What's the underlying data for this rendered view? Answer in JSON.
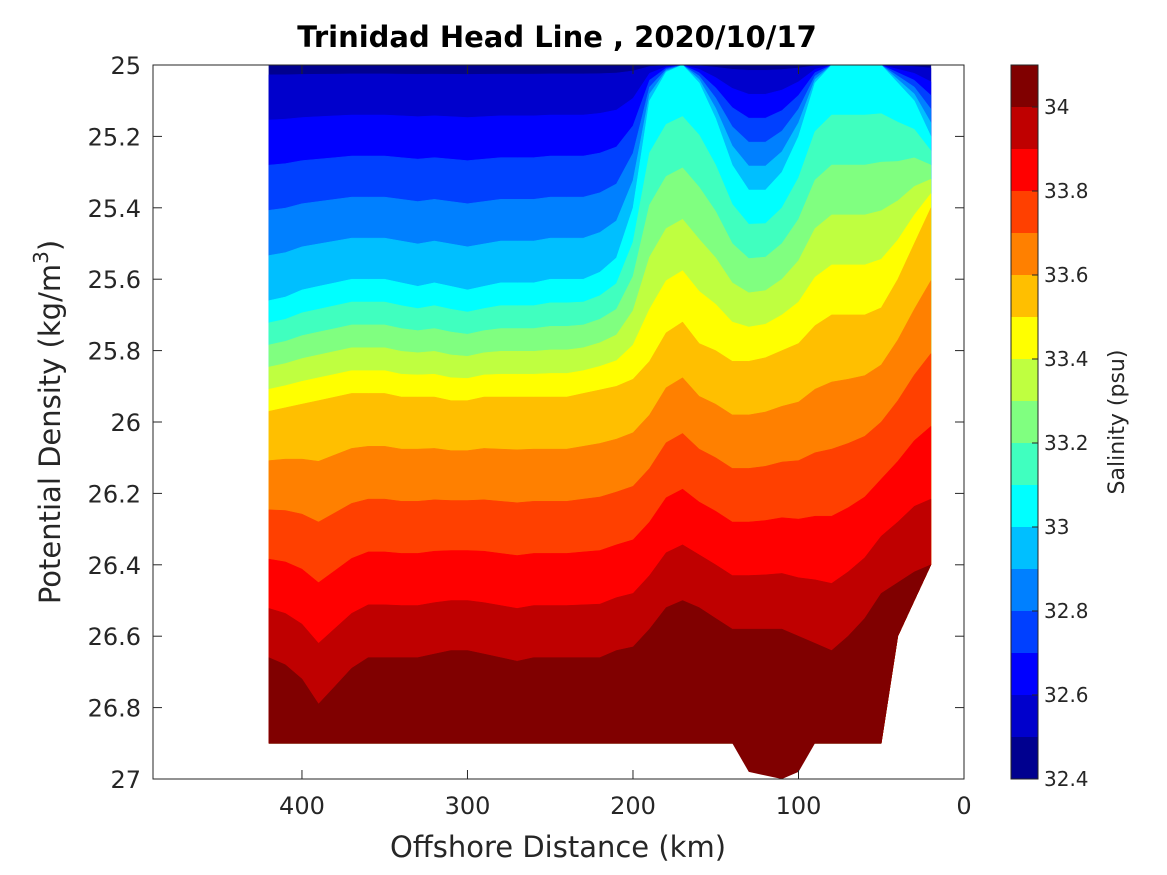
{
  "chart_data": {
    "type": "contour",
    "title": "Trinidad Head Line , 2020/10/17",
    "xlabel": "Offshore Distance (km)",
    "ylabel_main": "Potential Density (kg/m",
    "ylabel_sup": "3",
    "ylabel_close": ")",
    "colorbar_label": "Salinity (psu)",
    "x_reversed": true,
    "xlim": [
      490,
      0
    ],
    "ylim_reversed": true,
    "ylim": [
      25,
      27
    ],
    "x_ticks": [
      400,
      300,
      200,
      100,
      0
    ],
    "x_tick_labels": [
      "400",
      "300",
      "200",
      "100",
      "0"
    ],
    "y_ticks": [
      25,
      25.2,
      25.4,
      25.6,
      25.8,
      26,
      26.2,
      26.4,
      26.6,
      26.8,
      27
    ],
    "y_tick_labels": [
      "25",
      "25.2",
      "25.4",
      "25.6",
      "25.8",
      "26",
      "26.2",
      "26.4",
      "26.6",
      "26.8",
      "27"
    ],
    "colorbar_range": [
      32.4,
      34.1
    ],
    "colorbar_ticks": [
      32.4,
      32.6,
      32.8,
      33,
      33.2,
      33.4,
      33.6,
      33.8,
      34
    ],
    "colorbar_tick_labels": [
      "32.4",
      "32.6",
      "32.8",
      "33",
      "33.2",
      "33.4",
      "33.6",
      "33.8",
      "34"
    ],
    "levels": [
      32.4,
      32.5,
      32.6,
      32.7,
      32.8,
      32.9,
      33.0,
      33.1,
      33.2,
      33.3,
      33.4,
      33.5,
      33.6,
      33.7,
      33.8,
      33.9,
      34.0
    ],
    "level_colors": [
      "#00008f",
      "#0000cc",
      "#0000ff",
      "#0040ff",
      "#0080ff",
      "#00bfff",
      "#00ffff",
      "#40ffbf",
      "#80ff80",
      "#bfff40",
      "#ffff00",
      "#ffbf00",
      "#ff8000",
      "#ff4000",
      "#ff0000",
      "#bf0000",
      "#800000"
    ],
    "x": [
      420,
      410,
      400,
      390,
      380,
      370,
      360,
      350,
      340,
      330,
      320,
      310,
      300,
      290,
      280,
      270,
      260,
      250,
      240,
      230,
      220,
      210,
      200,
      190,
      180,
      170,
      160,
      150,
      140,
      130,
      120,
      110,
      100,
      90,
      80,
      70,
      60,
      50,
      40,
      30,
      20
    ],
    "isopycnal_depth_of_salinity_level": {
      "note": "sigma-theta at which salinity crosses each level, per station (x order as above)",
      "33.0": [
        25.66,
        25.65,
        25.63,
        25.62,
        25.61,
        25.6,
        25.6,
        25.6,
        25.61,
        25.62,
        25.61,
        25.62,
        25.63,
        25.62,
        25.61,
        25.61,
        25.61,
        25.6,
        25.6,
        25.6,
        25.58,
        25.54,
        25.4,
        25.1,
        25.02,
        25.0,
        25.05,
        25.15,
        25.28,
        25.35,
        25.35,
        25.3,
        25.2,
        25.05,
        25.0,
        25.0,
        25.0,
        25.0,
        25.05,
        25.1,
        25.2
      ],
      "33.5": [
        25.97,
        25.96,
        25.95,
        25.94,
        25.93,
        25.92,
        25.92,
        25.92,
        25.93,
        25.93,
        25.93,
        25.94,
        25.94,
        25.93,
        25.93,
        25.93,
        25.93,
        25.93,
        25.93,
        25.92,
        25.91,
        25.9,
        25.88,
        25.83,
        25.75,
        25.72,
        25.78,
        25.8,
        25.83,
        25.83,
        25.82,
        25.8,
        25.78,
        25.73,
        25.7,
        25.7,
        25.7,
        25.68,
        25.6,
        25.5,
        25.4
      ],
      "34.0": [
        26.66,
        26.68,
        26.72,
        26.79,
        26.74,
        26.69,
        26.66,
        26.66,
        26.66,
        26.66,
        26.65,
        26.64,
        26.64,
        26.65,
        26.66,
        26.67,
        26.66,
        26.66,
        26.66,
        26.66,
        26.66,
        26.64,
        26.63,
        26.58,
        26.52,
        26.5,
        26.52,
        26.55,
        26.58,
        26.58,
        26.58,
        26.58,
        26.6,
        26.62,
        26.64,
        26.6,
        26.55,
        26.48,
        26.45,
        26.42,
        26.42
      ]
    }
  }
}
